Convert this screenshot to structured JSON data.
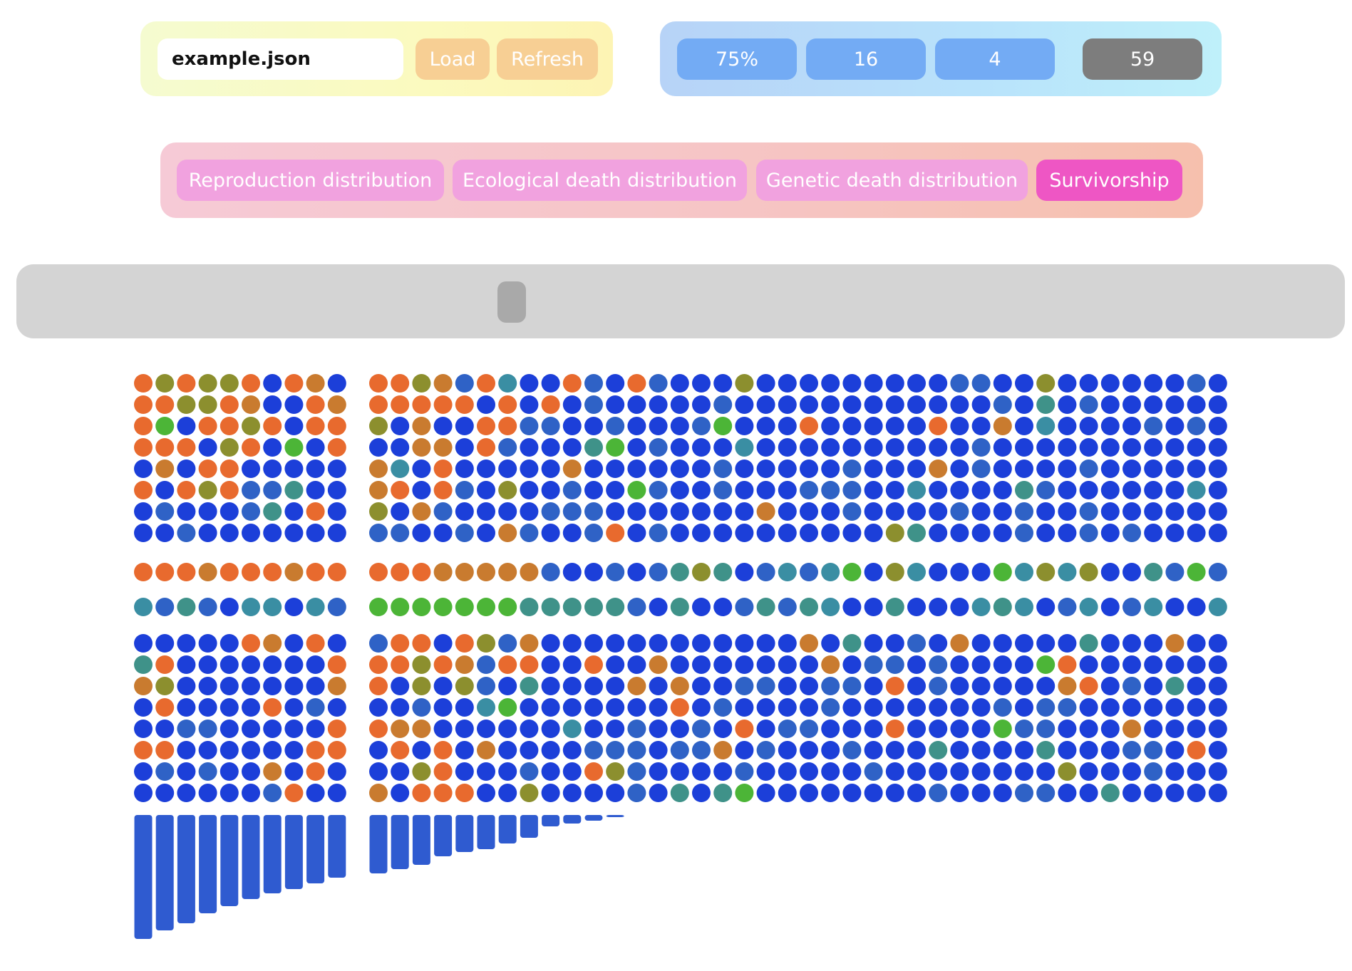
{
  "file": {
    "value": "example.json",
    "load_label": "Load",
    "refresh_label": "Refresh"
  },
  "stats": {
    "percent": "75%",
    "value_a": "16",
    "value_b": "4",
    "value_c": "59"
  },
  "tabs": [
    {
      "label": "Reproduction distribution",
      "active": false
    },
    {
      "label": "Ecological death distribution",
      "active": false
    },
    {
      "label": "Genetic death distribution",
      "active": false
    },
    {
      "label": "Survivorship",
      "active": true
    }
  ],
  "slider": {
    "position": 0.37
  },
  "colors": {
    "blue": "#1c3fd9",
    "steel": "#2f62c6",
    "orange": "#e86a2e",
    "amber": "#c97b2f",
    "olive": "#8c8f2e",
    "olive_dark": "#6d8f2a",
    "green": "#4cb537",
    "teal": "#3f9289",
    "teal_blue": "#3a8ea3",
    "bar": "#2f5bd0",
    "inactive_stat": "#7d7d7d"
  },
  "grid": {
    "left_columns": 10,
    "right_columns": 40,
    "survivorship_left": [
      0.87,
      0.81,
      0.76,
      0.69,
      0.64,
      0.59,
      0.55,
      0.52,
      0.48,
      0.44
    ],
    "survivorship_right": [
      0.41,
      0.38,
      0.35,
      0.29,
      0.26,
      0.24,
      0.2,
      0.16,
      0.08,
      0.06,
      0.04,
      0.015
    ]
  }
}
